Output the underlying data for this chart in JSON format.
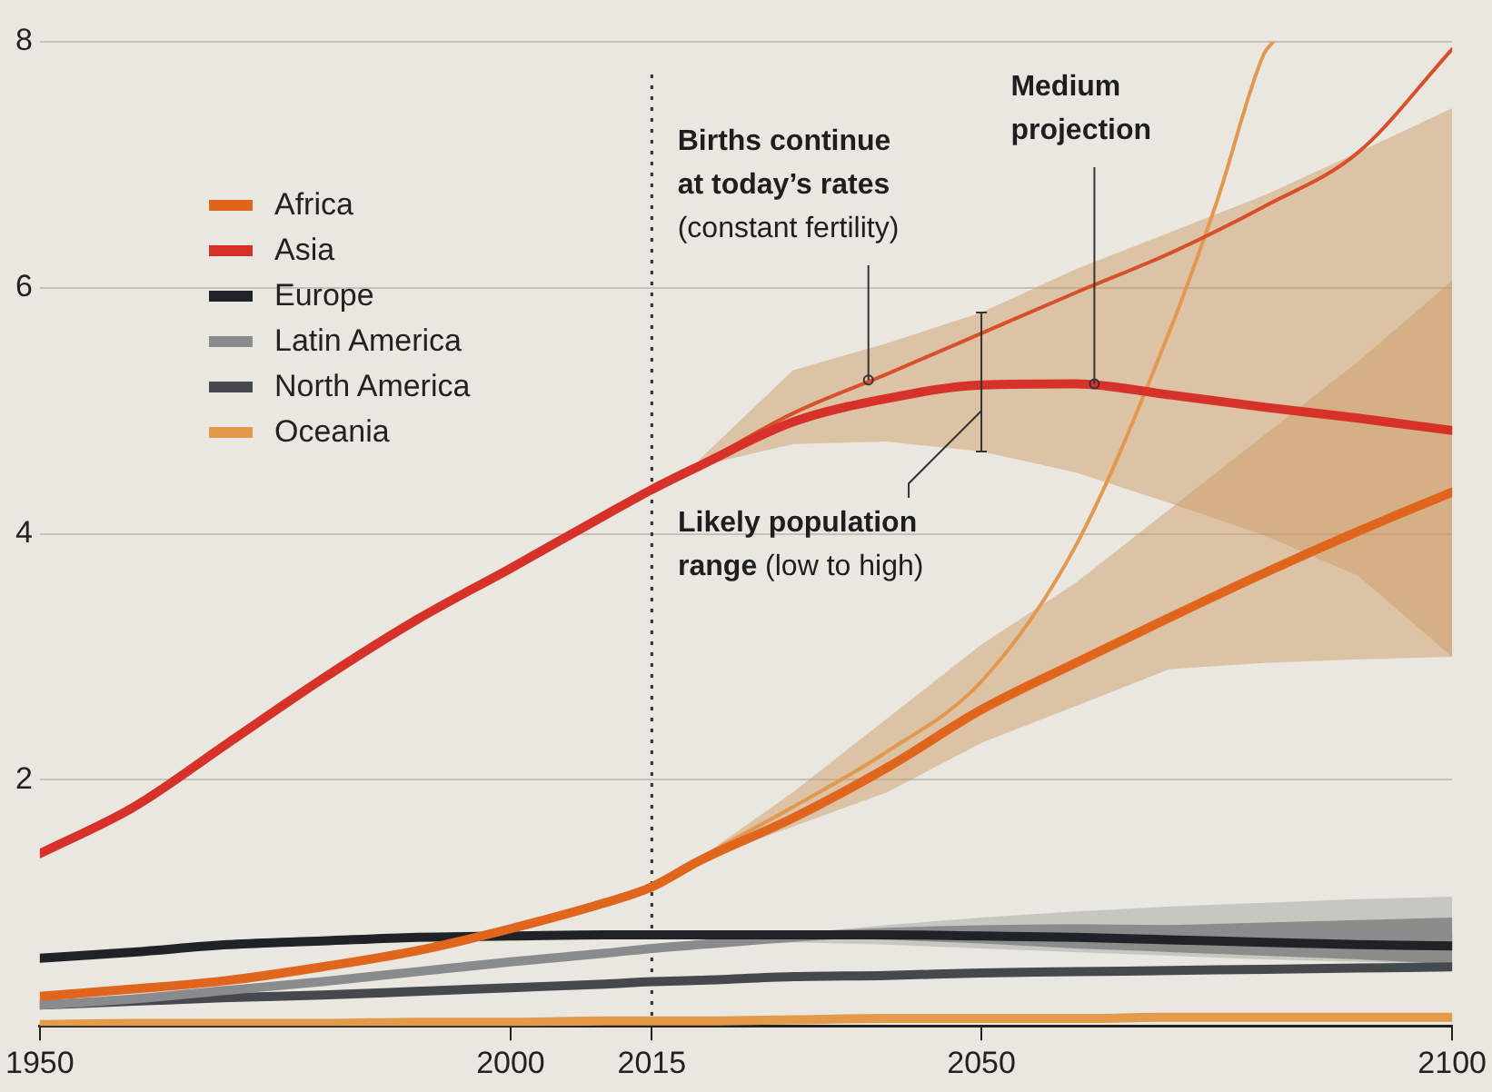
{
  "chart_data": {
    "type": "line",
    "x": [
      1950,
      1960,
      1970,
      1980,
      1990,
      2000,
      2010,
      2015,
      2020,
      2030,
      2040,
      2050,
      2060,
      2070,
      2080,
      2090,
      2100
    ],
    "series": [
      {
        "name": "Africa",
        "color": "#e0661e",
        "values": [
          0.24,
          0.3,
          0.37,
          0.48,
          0.61,
          0.79,
          1.0,
          1.13,
          1.34,
          1.69,
          2.1,
          2.57,
          2.95,
          3.32,
          3.68,
          4.02,
          4.34
        ],
        "lower": [
          null,
          null,
          null,
          null,
          null,
          null,
          null,
          null,
          1.34,
          1.62,
          1.9,
          2.3,
          2.6,
          2.9,
          2.95,
          2.98,
          3.0
        ],
        "upper": [
          null,
          null,
          null,
          null,
          null,
          null,
          null,
          null,
          1.36,
          1.9,
          2.5,
          3.1,
          3.6,
          4.2,
          4.8,
          5.4,
          6.06
        ]
      },
      {
        "name": "Asia",
        "color": "#d6322a",
        "values": [
          1.4,
          1.78,
          2.3,
          2.82,
          3.3,
          3.72,
          4.15,
          4.36,
          4.55,
          4.91,
          5.1,
          5.21,
          5.22,
          5.13,
          5.03,
          4.94,
          4.84
        ],
        "errors": [
          null,
          null,
          null,
          null,
          null,
          null,
          null,
          null,
          null,
          null,
          null,
          [
            4.67,
            5.8
          ],
          null,
          null,
          null,
          null,
          null
        ],
        "lower": [
          null,
          null,
          null,
          null,
          null,
          null,
          null,
          null,
          4.55,
          4.73,
          4.75,
          4.67,
          4.5,
          4.25,
          3.99,
          3.66,
          3.0
        ],
        "upper": [
          null,
          null,
          null,
          null,
          null,
          null,
          null,
          null,
          4.6,
          5.33,
          5.55,
          5.8,
          6.15,
          6.45,
          6.75,
          7.1,
          7.46
        ]
      },
      {
        "name": "Europe",
        "color": "#1f2226",
        "values": [
          0.55,
          0.6,
          0.66,
          0.69,
          0.72,
          0.73,
          0.74,
          0.74,
          0.74,
          0.74,
          0.74,
          0.73,
          0.72,
          0.7,
          0.68,
          0.66,
          0.65
        ],
        "lower": [
          null,
          null,
          null,
          null,
          null,
          null,
          null,
          null,
          0.74,
          0.72,
          0.7,
          0.67,
          0.63,
          0.6,
          0.57,
          0.54,
          0.5
        ],
        "upper": [
          null,
          null,
          null,
          null,
          null,
          null,
          null,
          null,
          0.74,
          0.76,
          0.78,
          0.79,
          0.8,
          0.82,
          0.84,
          0.86,
          0.88
        ]
      },
      {
        "name": "Latin America",
        "color": "#8a8b8d",
        "values": [
          0.17,
          0.22,
          0.29,
          0.36,
          0.44,
          0.52,
          0.59,
          0.63,
          0.66,
          0.72,
          0.76,
          0.78,
          0.79,
          0.78,
          0.76,
          0.74,
          0.72
        ],
        "lower": [
          null,
          null,
          null,
          null,
          null,
          null,
          null,
          null,
          0.66,
          0.68,
          0.66,
          0.63,
          0.6,
          0.57,
          0.54,
          0.52,
          0.5
        ],
        "upper": [
          null,
          null,
          null,
          null,
          null,
          null,
          null,
          null,
          0.66,
          0.75,
          0.82,
          0.88,
          0.93,
          0.97,
          1.0,
          1.03,
          1.05
        ]
      },
      {
        "name": "North America",
        "color": "#45484d",
        "values": [
          0.17,
          0.2,
          0.23,
          0.25,
          0.28,
          0.31,
          0.34,
          0.36,
          0.37,
          0.4,
          0.41,
          0.43,
          0.44,
          0.45,
          0.46,
          0.47,
          0.48
        ]
      },
      {
        "name": "Oceania",
        "color": "#e39a4a",
        "values": [
          0.01,
          0.02,
          0.02,
          0.02,
          0.03,
          0.03,
          0.04,
          0.04,
          0.04,
          0.05,
          0.06,
          0.06,
          0.06,
          0.07,
          0.07,
          0.07,
          0.07
        ]
      },
      {
        "color": "#d6502a",
        "x": [
          2015,
          2020,
          2030,
          2040,
          2050,
          2060,
          2070,
          2080,
          2090,
          2100
        ],
        "values": [
          4.36,
          4.56,
          4.98,
          5.3,
          5.63,
          5.96,
          6.28,
          6.66,
          7.1,
          7.94
        ]
      },
      {
        "color": "#e3984f",
        "x": [
          2015,
          2020,
          2030,
          2040,
          2050,
          2060,
          2070,
          2075,
          2080,
          2081
        ],
        "values": [
          1.13,
          1.36,
          1.78,
          2.23,
          2.8,
          3.9,
          5.65,
          6.7,
          7.9,
          8.0
        ]
      }
    ],
    "xlim": [
      1950,
      2100
    ],
    "xticks": [
      1950,
      2000,
      2015,
      2050,
      2100
    ],
    "ylim": [
      0,
      8
    ],
    "yticks": [
      2,
      4,
      6,
      8
    ],
    "grid": "y",
    "legend": "top left",
    "marker": "none",
    "line_style": "solid",
    "ref_lines": [
      {
        "axis": "x",
        "value": 2015,
        "line_style": "dotted"
      }
    ],
    "annotations": [
      {
        "text": "Births continue at today’s rates (constant fertility)",
        "x": 2038,
        "y": 5.25
      },
      {
        "text": "Medium projection",
        "x": 2062,
        "y": 5.22
      },
      {
        "text": "Likely population range (low to high)",
        "x": 2050,
        "y": 5.0
      }
    ]
  }
}
